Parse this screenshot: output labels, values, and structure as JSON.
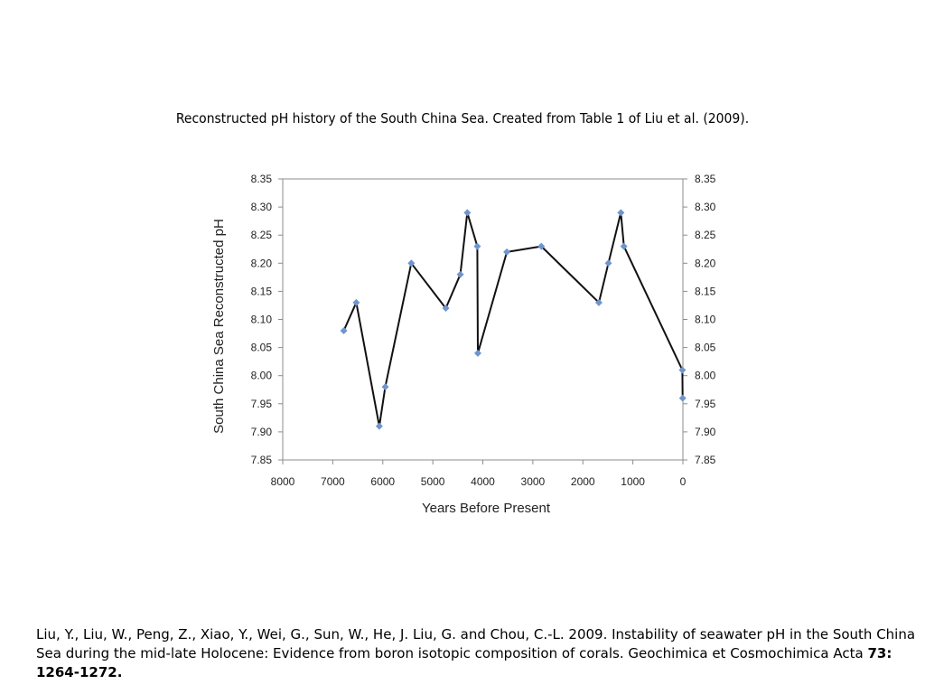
{
  "caption": "Reconstructed pH history of the South China Sea. Created from Table 1 of Liu et al. (2009).",
  "reference": {
    "text": "Liu, Y., Liu, W., Peng, Z., Xiao, Y., Wei, G., Sun, W., He, J. Liu, G. and Chou, C.-L. 2009. Instability of seawater pH in the South China Sea during the mid-late Holocene: Evidence from boron isotopic composition of corals. Geochimica et Cosmochimica Acta ",
    "bold": "73: 1264-1272."
  },
  "chart_data": {
    "type": "line",
    "title": "",
    "xlabel": "Years Before Present",
    "ylabel": "South China Sea Reconstructed pH",
    "xlim": [
      8000,
      0
    ],
    "x_reversed": true,
    "ylim": [
      7.85,
      8.35
    ],
    "x_ticks": [
      "8000",
      "7000",
      "6000",
      "5000",
      "4000",
      "3000",
      "2000",
      "1000",
      "0"
    ],
    "y_ticks": [
      "8.35",
      "8.30",
      "8.25",
      "8.20",
      "8.15",
      "8.10",
      "8.05",
      "8.00",
      "7.95",
      "7.90",
      "7.85"
    ],
    "secondary_y_axis": true,
    "grid": false,
    "series": [
      {
        "line_color": "#111111",
        "marker_color": "#6f95cf",
        "marker": "diamond",
        "x": [
          6780,
          6530,
          6070,
          5950,
          5430,
          4740,
          4450,
          4310,
          4110,
          4100,
          3520,
          2830,
          1680,
          1490,
          1240,
          1180,
          10,
          5
        ],
        "y": [
          8.08,
          8.13,
          7.91,
          7.98,
          8.2,
          8.12,
          8.18,
          8.29,
          8.23,
          8.04,
          8.22,
          8.23,
          8.13,
          8.2,
          8.29,
          8.23,
          8.01,
          7.96
        ]
      }
    ]
  }
}
